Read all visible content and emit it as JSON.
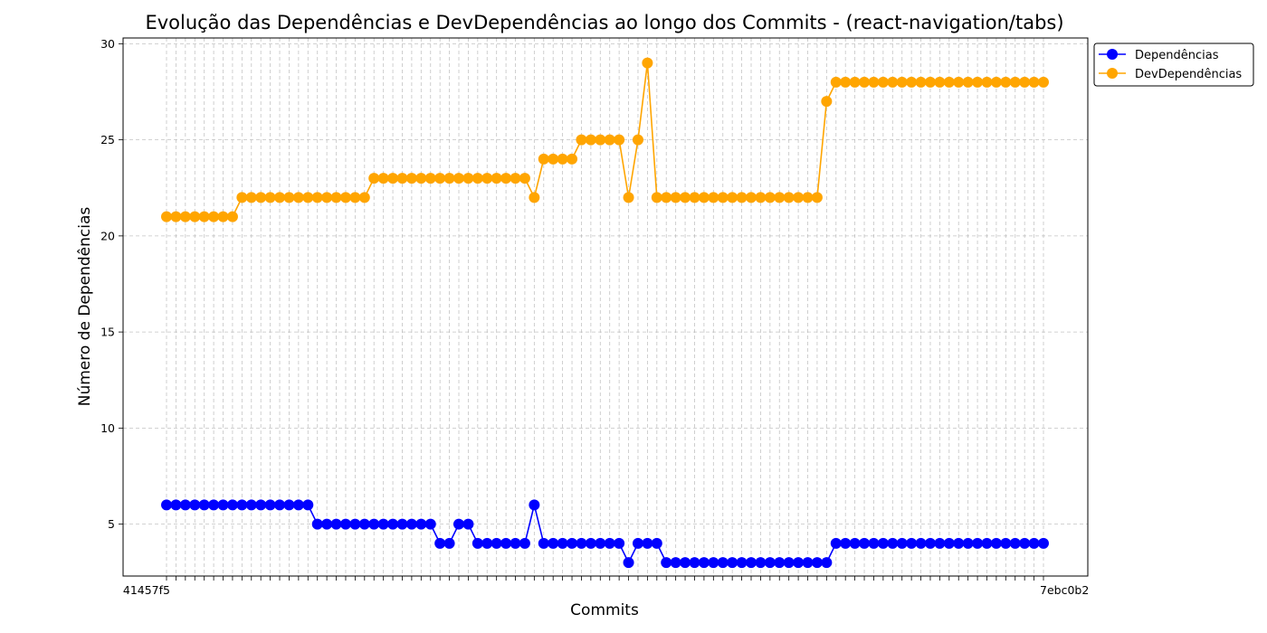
{
  "chart_data": {
    "type": "line",
    "title": "Evolução das Dependências e DevDependências ao longo dos Commits - (react-navigation/tabs)",
    "xlabel": "Commits",
    "ylabel": "Número de Dependências",
    "ylim": [
      2.3,
      30.3
    ],
    "yticks": [
      5,
      10,
      15,
      20,
      25,
      30
    ],
    "grid": true,
    "legend": "top-right outside",
    "first_x_label": "41457f5",
    "last_x_label": "7ebc0b2",
    "series": [
      {
        "name": "Dependências",
        "color": "#0000ff",
        "values": [
          6,
          6,
          6,
          6,
          6,
          6,
          6,
          6,
          6,
          6,
          6,
          6,
          6,
          6,
          6,
          6,
          5,
          5,
          5,
          5,
          5,
          5,
          5,
          5,
          5,
          5,
          5,
          5,
          5,
          4,
          4,
          5,
          5,
          4,
          4,
          4,
          4,
          4,
          4,
          6,
          4,
          4,
          4,
          4,
          4,
          4,
          4,
          4,
          4,
          3,
          4,
          4,
          4,
          3,
          3,
          3,
          3,
          3,
          3,
          3,
          3,
          3,
          3,
          3,
          3,
          3,
          3,
          3,
          3,
          3,
          3,
          4,
          4,
          4,
          4,
          4,
          4,
          4,
          4,
          4,
          4,
          4,
          4,
          4,
          4,
          4,
          4,
          4,
          4,
          4,
          4,
          4,
          4,
          4
        ]
      },
      {
        "name": "DevDependências",
        "color": "#ffa500",
        "values": [
          21,
          21,
          21,
          21,
          21,
          21,
          21,
          21,
          22,
          22,
          22,
          22,
          22,
          22,
          22,
          22,
          22,
          22,
          22,
          22,
          22,
          22,
          23,
          23,
          23,
          23,
          23,
          23,
          23,
          23,
          23,
          23,
          23,
          23,
          23,
          23,
          23,
          23,
          23,
          22,
          24,
          24,
          24,
          24,
          25,
          25,
          25,
          25,
          25,
          22,
          25,
          29,
          22,
          22,
          22,
          22,
          22,
          22,
          22,
          22,
          22,
          22,
          22,
          22,
          22,
          22,
          22,
          22,
          22,
          22,
          27,
          28,
          28,
          28,
          28,
          28,
          28,
          28,
          28,
          28,
          28,
          28,
          28,
          28,
          28,
          28,
          28,
          28,
          28,
          28,
          28,
          28,
          28,
          28
        ]
      }
    ]
  }
}
